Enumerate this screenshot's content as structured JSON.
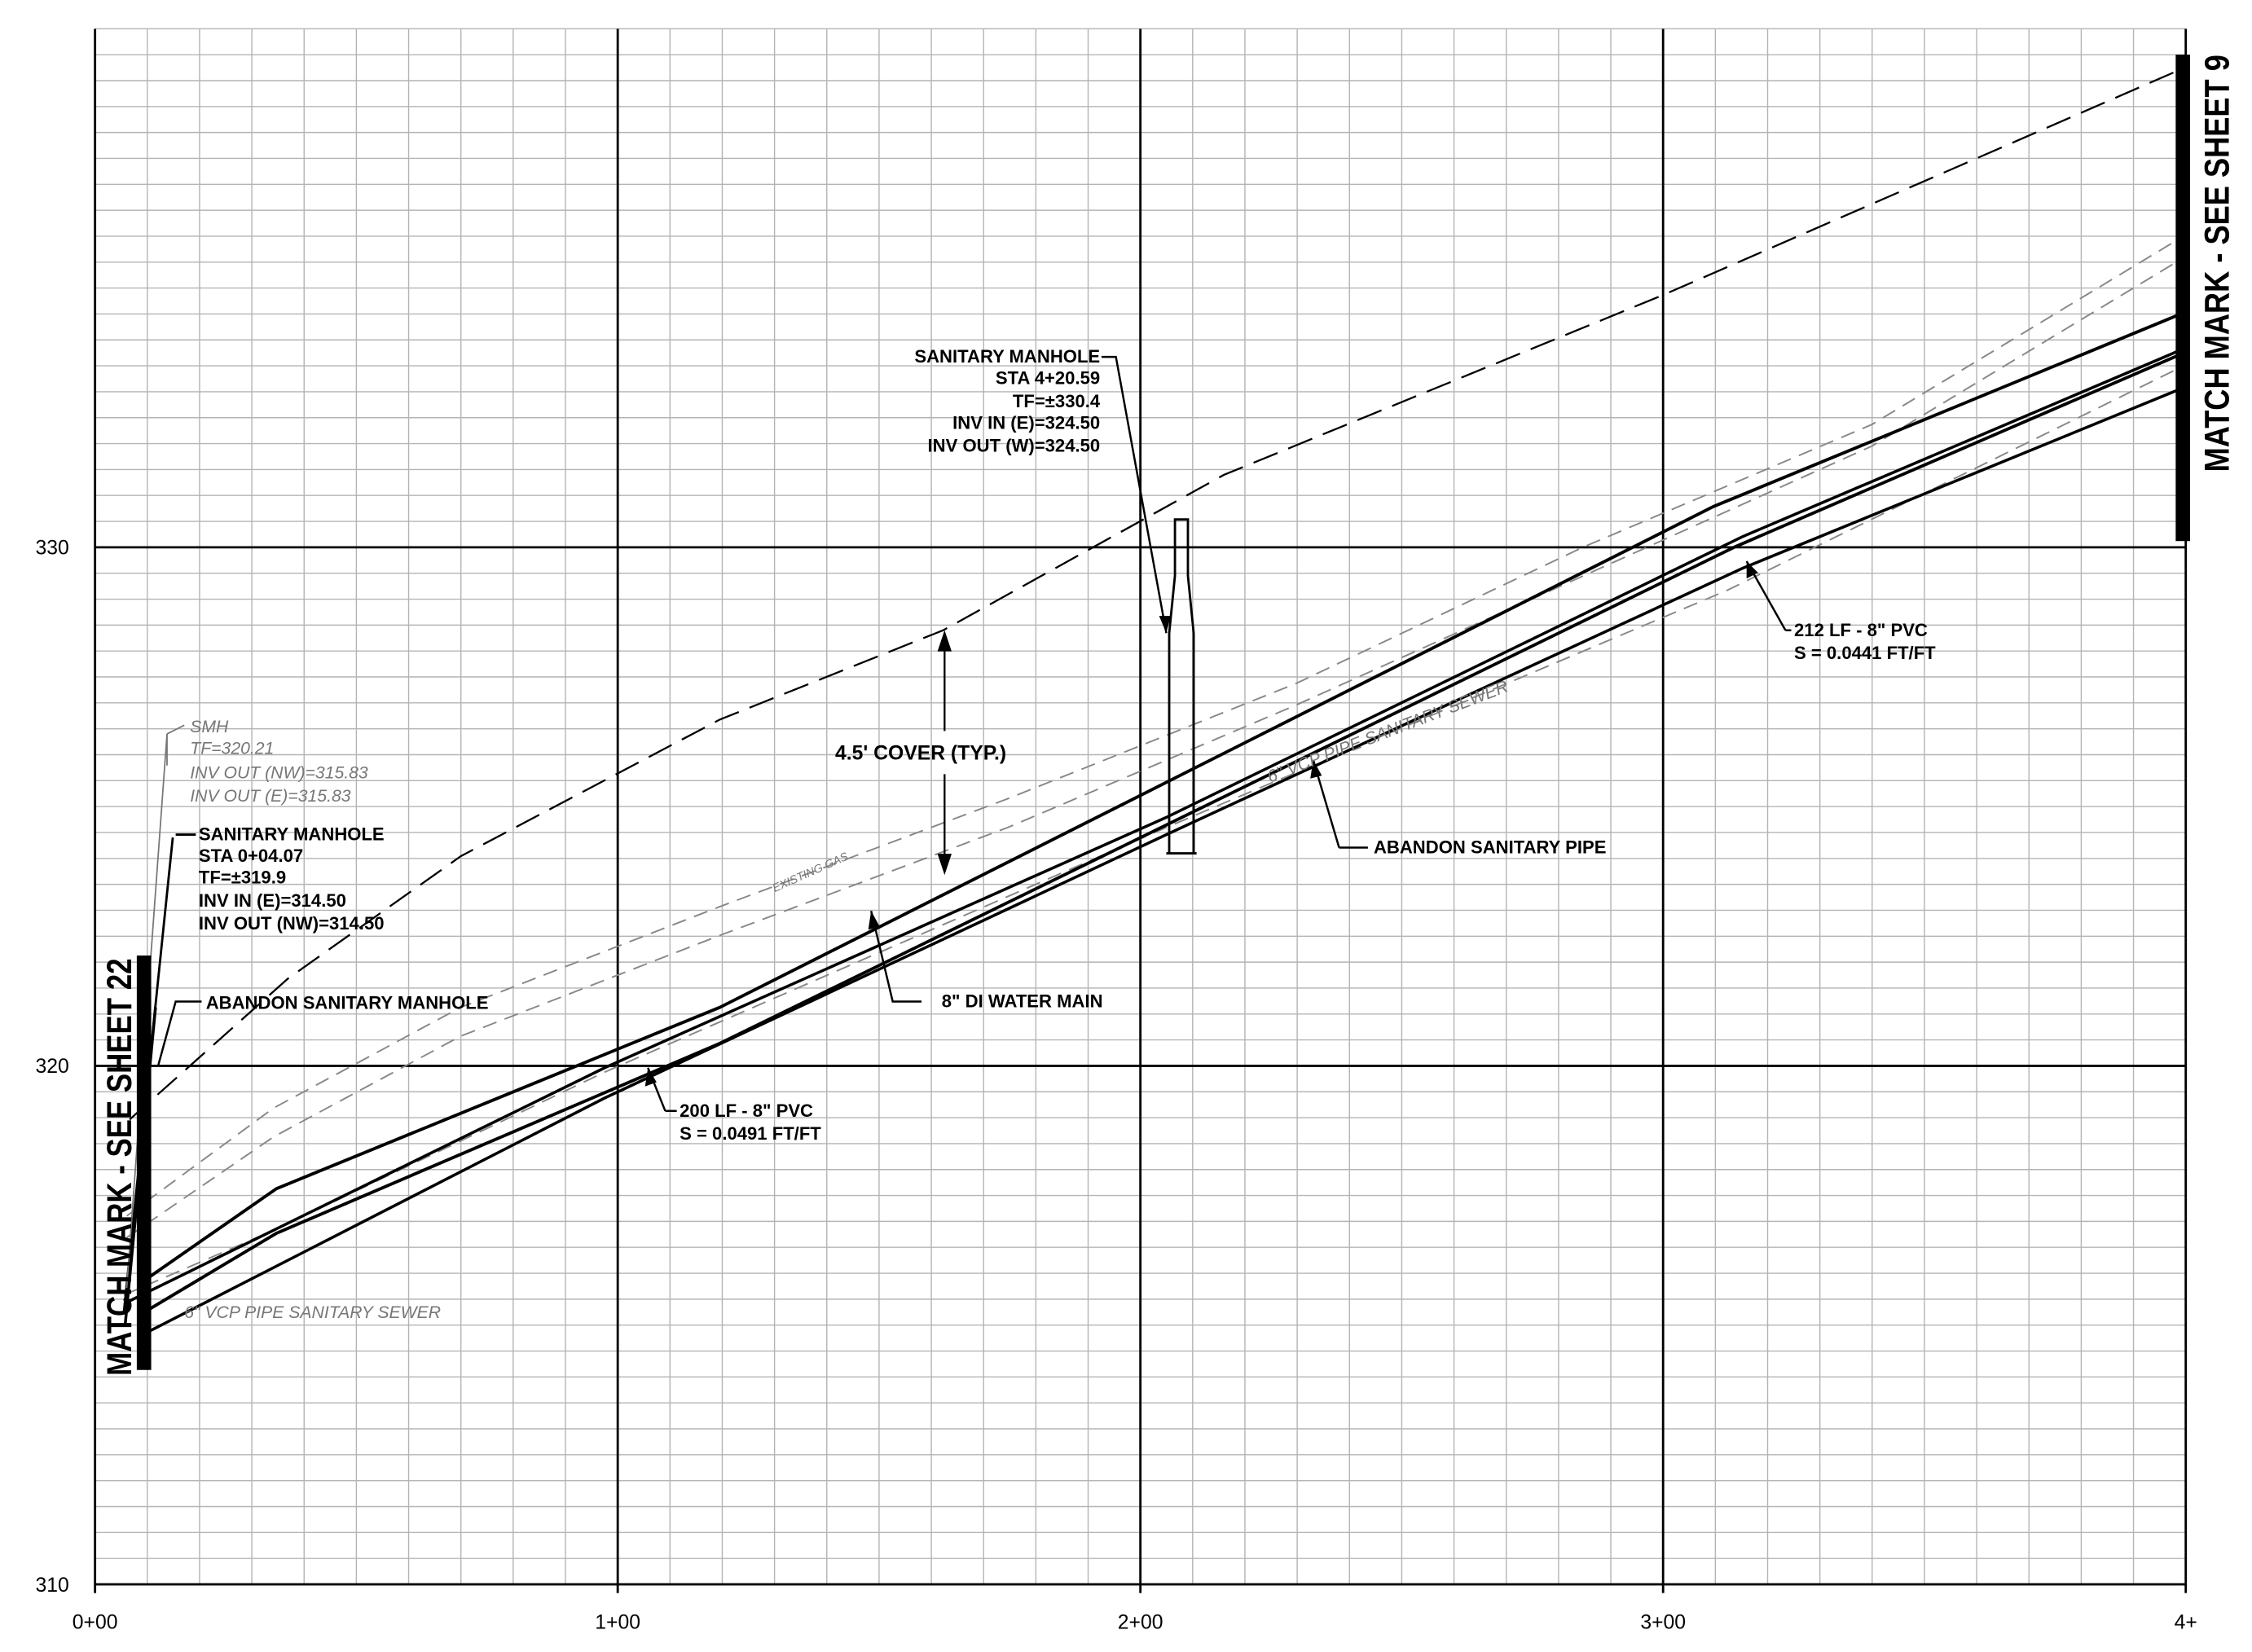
{
  "profile": {
    "y_axis": {
      "min": 310,
      "max": 340,
      "major_labels": [
        "310",
        "320",
        "330"
      ],
      "major_values": [
        310,
        320,
        330
      ],
      "minor_interval_ft": 0.5
    },
    "x_axis": {
      "min_sta_ft": 0,
      "max_sta_ft": 400,
      "labels": [
        "0+00",
        "1+00",
        "2+00",
        "3+00",
        "4+"
      ],
      "label_values": [
        0,
        100,
        200,
        300,
        400
      ],
      "minor_interval_ft": 10
    }
  },
  "match_marks": {
    "left": "MATCH MARK - SEE SHEET 22",
    "right": "MATCH MARK - SEE SHEET 9"
  },
  "labels": {
    "smh": [
      "SMH",
      "TF=320.21",
      "INV OUT (NW)=315.83",
      "INV OUT (E)=315.83"
    ],
    "manhole_start": [
      "SANITARY MANHOLE",
      "STA 0+04.07",
      "TF=±319.9",
      "INV IN (E)=314.50",
      "INV OUT (NW)=314.50"
    ],
    "abandon_manhole": "ABANDON SANITARY MANHOLE",
    "vcp_left": "6\" VCP PIPE SANITARY SEWER",
    "existing_gas": "EXISTING GAS",
    "cover": "4.5' COVER (TYP.)",
    "water_main": "8\" DI WATER MAIN",
    "pipe1": [
      "200 LF - 8\" PVC",
      "S = 0.0491 FT/FT"
    ],
    "manhole_end": [
      "SANITARY MANHOLE",
      "STA 4+20.59",
      "TF=±330.4",
      "INV IN (E)=324.50",
      "INV OUT (W)=324.50"
    ],
    "vcp_right": "6\" VCP PIPE SANITARY SEWER",
    "abandon_pipe": "ABANDON SANITARY PIPE",
    "pipe2": [
      "212 LF - 8\" PVC",
      "S = 0.0441 FT/FT"
    ]
  }
}
